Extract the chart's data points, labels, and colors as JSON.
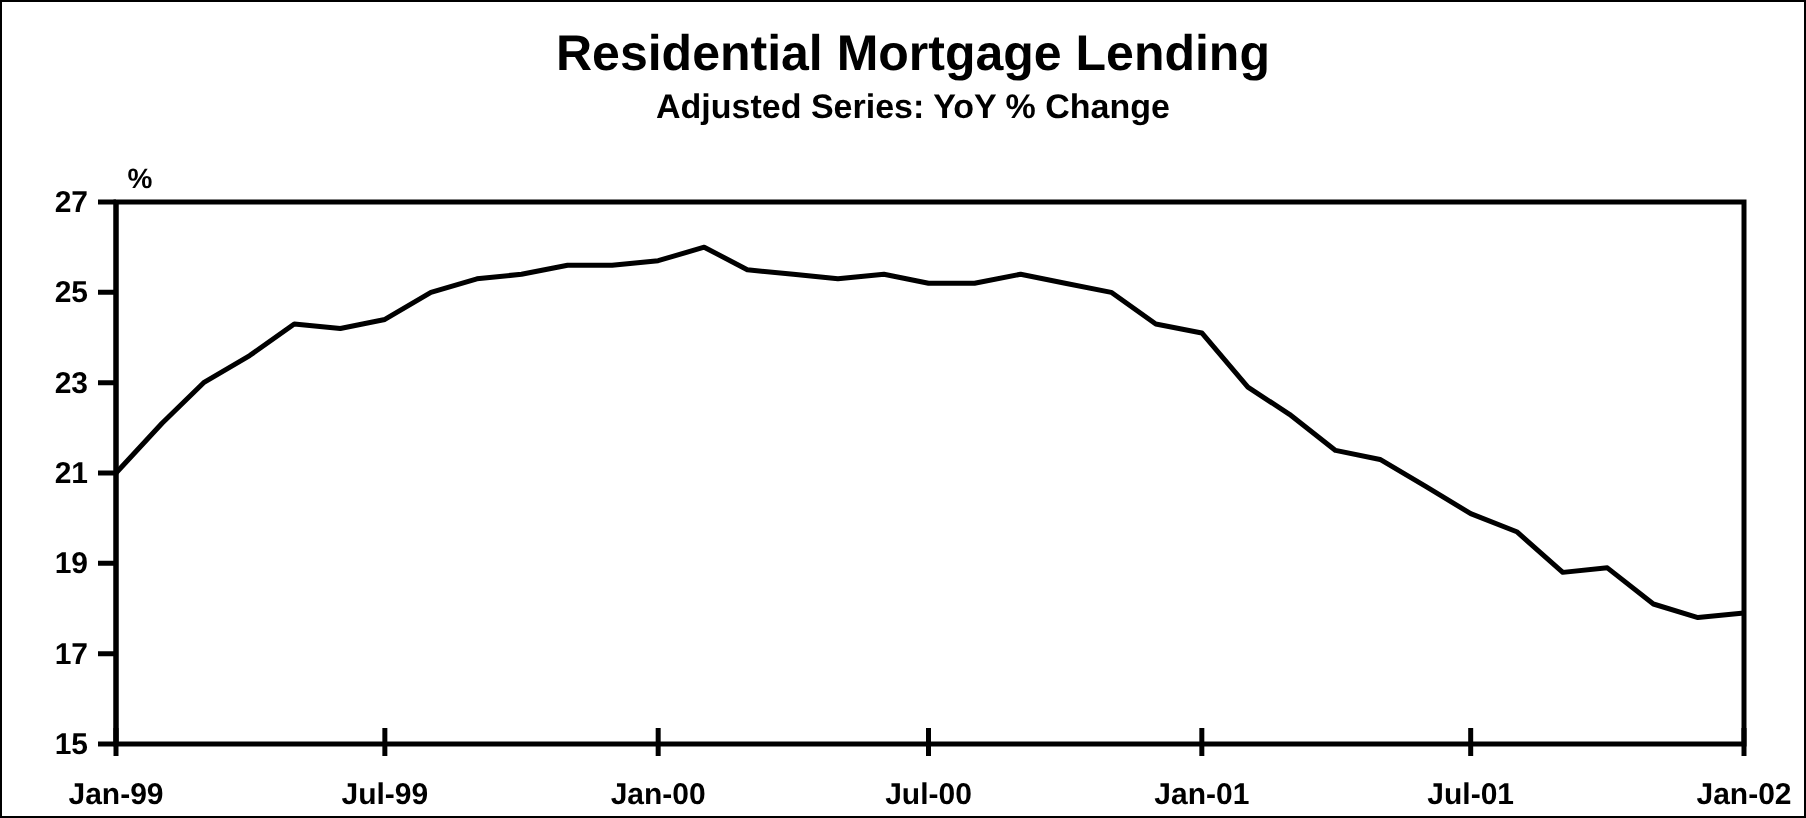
{
  "chart_data": {
    "type": "line",
    "title": "Residential Mortgage Lending",
    "subtitle": "Adjusted Series: YoY % Change",
    "ylabel": "%",
    "x": [
      "1999-01",
      "1999-02",
      "1999-03",
      "1999-04",
      "1999-05",
      "1999-06",
      "1999-07",
      "1999-08",
      "1999-09",
      "1999-10",
      "1999-11",
      "1999-12",
      "2000-01",
      "2000-02",
      "2000-03",
      "2000-04",
      "2000-05",
      "2000-06",
      "2000-07",
      "2000-08",
      "2000-09",
      "2000-10",
      "2000-11",
      "2000-12",
      "2001-01",
      "2001-02",
      "2001-03",
      "2001-04",
      "2001-05",
      "2001-06",
      "2001-07",
      "2001-08",
      "2001-09",
      "2001-10",
      "2001-11",
      "2001-12",
      "2002-01"
    ],
    "series": [
      {
        "color": "#000000",
        "values": [
          21.0,
          22.1,
          23.0,
          23.6,
          24.3,
          24.2,
          24.4,
          25.0,
          25.3,
          25.4,
          25.6,
          25.6,
          25.7,
          26.0,
          25.5,
          25.4,
          25.3,
          25.4,
          25.2,
          25.2,
          25.4,
          25.2,
          25.0,
          24.3,
          24.1,
          22.9,
          22.3,
          21.5,
          21.3,
          20.7,
          20.1,
          19.7,
          18.8,
          18.9,
          18.1,
          17.8,
          17.9
        ]
      }
    ],
    "xlim": [
      "1999-01",
      "2002-01"
    ],
    "xticks": [
      {
        "value": "1999-01",
        "label": "Jan-99"
      },
      {
        "value": "1999-07",
        "label": "Jul-99"
      },
      {
        "value": "2000-01",
        "label": "Jan-00"
      },
      {
        "value": "2000-07",
        "label": "Jul-00"
      },
      {
        "value": "2001-01",
        "label": "Jan-01"
      },
      {
        "value": "2001-07",
        "label": "Jul-01"
      },
      {
        "value": "2002-01",
        "label": "Jan-02"
      }
    ],
    "ylim": [
      15,
      27
    ],
    "yticks": [
      15,
      17,
      19,
      21,
      23,
      25,
      27
    ],
    "grid": false,
    "marker": "none",
    "line_style": "solid"
  }
}
